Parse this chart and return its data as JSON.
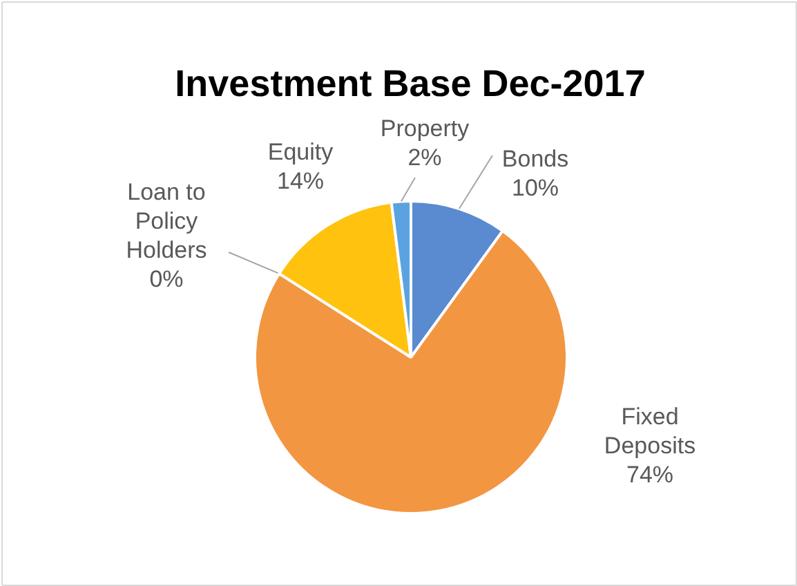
{
  "chart_data": {
    "type": "pie",
    "title": "Investment Base Dec-2017",
    "categories": [
      "Bonds",
      "Fixed Deposits",
      "Loan to Policy Holders",
      "Equity",
      "Property"
    ],
    "values": [
      10,
      74,
      0,
      14,
      2
    ],
    "colors": [
      "#5a8ad0",
      "#f39641",
      "#a5a5a5",
      "#ffc20e",
      "#5ba3e0"
    ],
    "value_labels": [
      "10%",
      "74%",
      "0%",
      "14%",
      "2%"
    ]
  }
}
